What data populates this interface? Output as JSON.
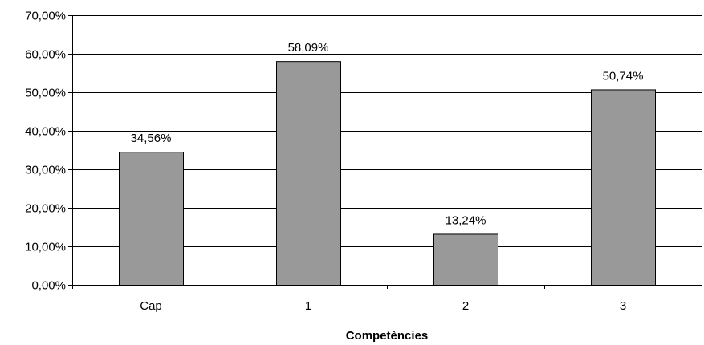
{
  "chart_data": {
    "type": "bar",
    "categories": [
      "Cap",
      "1",
      "2",
      "3"
    ],
    "values": [
      34.56,
      58.09,
      13.24,
      50.74
    ],
    "data_labels": [
      "34,56%",
      "58,09%",
      "13,24%",
      "50,74%"
    ],
    "title": "",
    "xlabel": "Competències",
    "ylabel": "",
    "ylim": [
      0,
      70
    ],
    "yticks": [
      0,
      10,
      20,
      30,
      40,
      50,
      60,
      70
    ],
    "ytick_labels": [
      "0,00%",
      "10,00%",
      "20,00%",
      "30,00%",
      "40,00%",
      "50,00%",
      "60,00%",
      "70,00%"
    ],
    "grid": true,
    "legend": "none",
    "colors": {
      "bar": "#999999",
      "bar_stroke": "#000000",
      "grid": "#000000",
      "background": "#ffffff"
    }
  }
}
